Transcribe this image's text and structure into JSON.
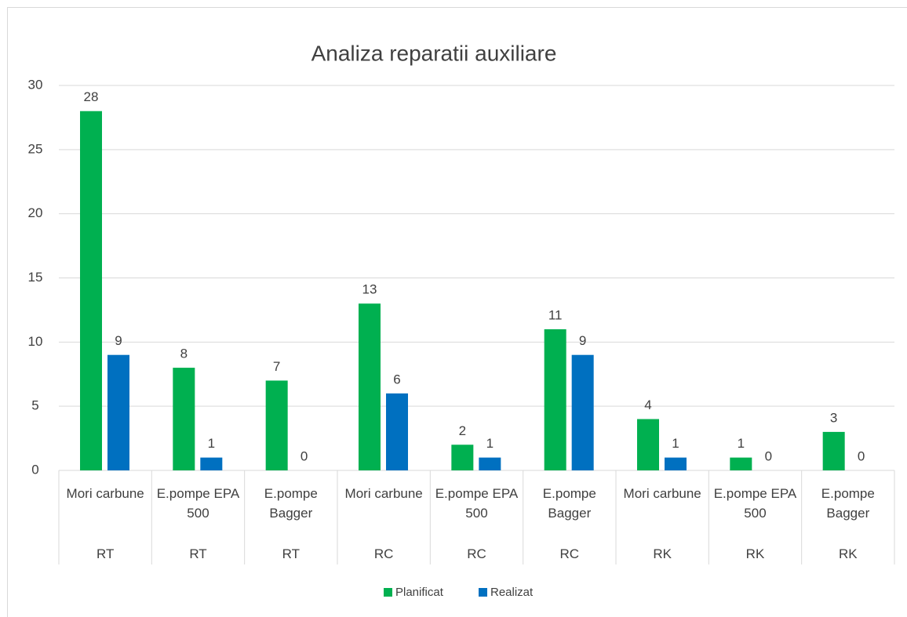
{
  "chart_data": {
    "type": "bar",
    "title": "Analiza reparatii auxiliare",
    "categories": [
      "Mori carbune",
      "E.pompe EPA 500",
      "E.pompe Bagger",
      "Mori carbune",
      "E.pompe EPA 500",
      "E.pompe Bagger",
      "Mori carbune",
      "E.pompe EPA 500",
      "E.pompe Bagger"
    ],
    "category_groups": [
      "RT",
      "RT",
      "RT",
      "RC",
      "RC",
      "RC",
      "RK",
      "RK",
      "RK"
    ],
    "series": [
      {
        "name": "Planificat",
        "color": "#00b050",
        "values": [
          28,
          8,
          7,
          13,
          2,
          11,
          4,
          1,
          3
        ]
      },
      {
        "name": "Realizat",
        "color": "#0070c0",
        "values": [
          9,
          1,
          0,
          6,
          1,
          9,
          1,
          0,
          0
        ]
      }
    ],
    "ylim": [
      0,
      30
    ],
    "yticks": [
      0,
      5,
      10,
      15,
      20,
      25,
      30
    ],
    "grid": true,
    "legend": "bottom"
  }
}
